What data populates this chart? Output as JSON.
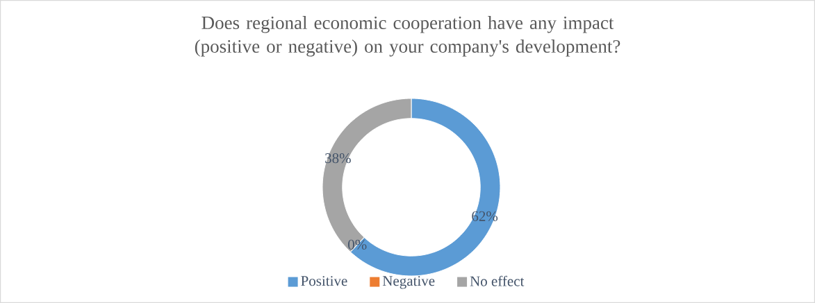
{
  "chart_data": {
    "type": "donut",
    "title": "Does regional economic cooperation have any impact (positive or negative) on your company's development?",
    "categories": [
      "Positive",
      "Negative",
      "No effect"
    ],
    "values": [
      62,
      0,
      38
    ],
    "colors": [
      "#5b9bd5",
      "#ed7d31",
      "#a5a5a5"
    ],
    "value_labels": [
      "62%",
      "0%",
      "38%"
    ],
    "legend": "bottom"
  }
}
